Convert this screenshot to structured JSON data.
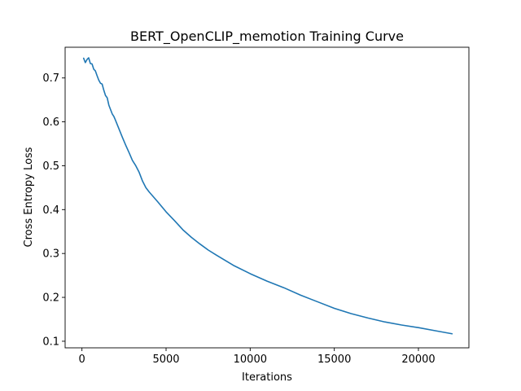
{
  "chart_data": {
    "type": "line",
    "title": "BERT_OpenCLIP_memotion Training Curve",
    "xlabel": "Iterations",
    "ylabel": "Cross Entropy Loss",
    "xlim": [
      -1000,
      23000
    ],
    "ylim": [
      0.085,
      0.77
    ],
    "xticks": [
      0,
      5000,
      10000,
      15000,
      20000
    ],
    "xtick_labels": [
      "0",
      "5000",
      "10000",
      "15000",
      "20000"
    ],
    "yticks": [
      0.1,
      0.2,
      0.3,
      0.4,
      0.5,
      0.6,
      0.7
    ],
    "ytick_labels": [
      "0.1",
      "0.2",
      "0.3",
      "0.4",
      "0.5",
      "0.6",
      "0.7"
    ],
    "grid": false,
    "series": [
      {
        "color": "#1f77b4",
        "x": [
          100,
          200,
          300,
          400,
          500,
          600,
          700,
          800,
          900,
          1000,
          1100,
          1200,
          1300,
          1400,
          1500,
          1600,
          1700,
          1800,
          1900,
          2000,
          2200,
          2400,
          2600,
          2800,
          3000,
          3200,
          3400,
          3600,
          3800,
          4000,
          4500,
          5000,
          5500,
          6000,
          6500,
          7000,
          7500,
          8000,
          9000,
          10000,
          11000,
          12000,
          13000,
          14000,
          15000,
          16000,
          17000,
          18000,
          19000,
          20000,
          21000,
          22000
        ],
        "y": [
          0.745,
          0.735,
          0.742,
          0.746,
          0.733,
          0.732,
          0.72,
          0.716,
          0.705,
          0.695,
          0.688,
          0.686,
          0.672,
          0.66,
          0.655,
          0.638,
          0.628,
          0.618,
          0.612,
          0.603,
          0.584,
          0.565,
          0.547,
          0.53,
          0.512,
          0.5,
          0.485,
          0.465,
          0.45,
          0.44,
          0.418,
          0.395,
          0.375,
          0.354,
          0.337,
          0.322,
          0.308,
          0.296,
          0.273,
          0.254,
          0.237,
          0.222,
          0.205,
          0.19,
          0.175,
          0.163,
          0.153,
          0.144,
          0.137,
          0.131,
          0.124,
          0.117
        ]
      }
    ]
  }
}
